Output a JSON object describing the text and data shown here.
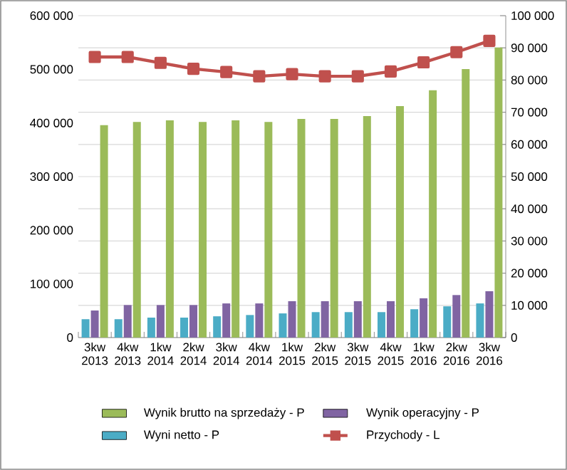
{
  "chart_data": {
    "type": "bar",
    "categories": [
      "3kw 2013",
      "4kw 2013",
      "1kw 2014",
      "2kw 2014",
      "3kw 2014",
      "4kw 2014",
      "1kw 2015",
      "2kw 2015",
      "3kw 2015",
      "4kw 2015",
      "1kw 2016",
      "2kw 2016",
      "3kw 2016"
    ],
    "series": [
      {
        "name": "Wynik brutto na sprzedaży - P",
        "color": "#9bbb59",
        "axis": "y2",
        "values": [
          66000,
          67000,
          67500,
          67000,
          67500,
          67000,
          67900,
          67900,
          68800,
          71900,
          76800,
          83400,
          90100
        ]
      },
      {
        "name": "Wynik operacyjny - P",
        "color": "#8064a2",
        "axis": "y2",
        "values": [
          8400,
          10100,
          10100,
          10100,
          10600,
          10600,
          11300,
          11300,
          11300,
          11300,
          12200,
          13200,
          14400
        ]
      },
      {
        "name": "Wyni netto - P",
        "color": "#4bacc6",
        "axis": "y2",
        "values": [
          5700,
          5700,
          6200,
          6200,
          6600,
          7000,
          7500,
          7900,
          7900,
          7900,
          8800,
          9700,
          10600
        ]
      },
      {
        "name": "Przychody - L",
        "color": "#c0504d",
        "type": "line",
        "marker": "square",
        "values": [
          523000,
          523000,
          512000,
          501000,
          495000,
          487000,
          491000,
          487000,
          487000,
          496000,
          513000,
          532000,
          553000
        ]
      }
    ],
    "ylim": [
      0,
      600000
    ],
    "yticks": [
      {
        "value": 0,
        "label": "0"
      },
      {
        "value": 100000,
        "label": "100 000"
      },
      {
        "value": 200000,
        "label": "200 000"
      },
      {
        "value": 300000,
        "label": "300 000"
      },
      {
        "value": 400000,
        "label": "400 000"
      },
      {
        "value": 500000,
        "label": "500 000"
      },
      {
        "value": 600000,
        "label": "600 000"
      }
    ],
    "y2lim": [
      0,
      100000
    ],
    "y2ticks": [
      {
        "value": 0,
        "label": "0"
      },
      {
        "value": 10000,
        "label": "10 000"
      },
      {
        "value": 20000,
        "label": "20 000"
      },
      {
        "value": 30000,
        "label": "30 000"
      },
      {
        "value": 40000,
        "label": "40 000"
      },
      {
        "value": 50000,
        "label": "50 000"
      },
      {
        "value": 60000,
        "label": "60 000"
      },
      {
        "value": 70000,
        "label": "70 000"
      },
      {
        "value": 80000,
        "label": "80 000"
      },
      {
        "value": 90000,
        "label": "90 000"
      },
      {
        "value": 100000,
        "label": "100 000"
      }
    ],
    "grid": true,
    "legend": "bottom"
  }
}
